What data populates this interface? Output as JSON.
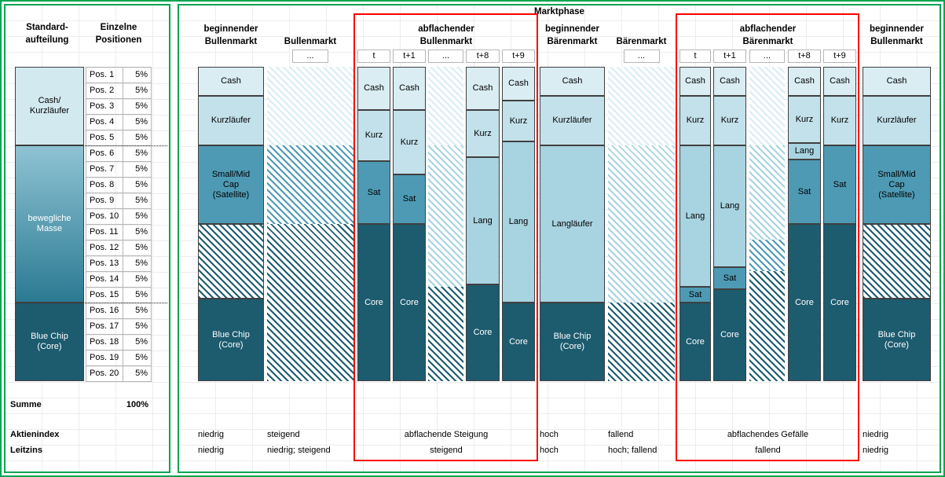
{
  "colors": {
    "panel_border_green": "#00A550",
    "highlight_red": "#FE0000",
    "grid_line": "#EDEDED",
    "cash": "#D9EDF3",
    "kurz": "#C3E1EA",
    "lang": "#A8D3E0",
    "sat": "#4E9AB4",
    "core": "#1D5B6F",
    "cash_kurz_block": "#D3E9F0",
    "movable_gradient_top": "#8FC3D4",
    "movable_gradient_bottom": "#2B7A92",
    "segment_border": "#404040"
  },
  "left_panel": {
    "col1_header": "Standard-\naufteilung",
    "col2_header": "Einzelne\nPositionen",
    "standard_bar": [
      {
        "label": "Cash/\nKurzläufer",
        "pct": 25,
        "fill": "cash_kurz_block",
        "text": "black"
      },
      {
        "label": "bewegliche\nMasse",
        "pct": 50,
        "fill": "movable_gradient",
        "text": "white"
      },
      {
        "label": "Blue Chip\n(Core)",
        "pct": 25,
        "fill": "core",
        "text": "white"
      }
    ],
    "positions": [
      {
        "label": "Pos. 1",
        "value": "5%"
      },
      {
        "label": "Pos. 2",
        "value": "5%"
      },
      {
        "label": "Pos. 3",
        "value": "5%"
      },
      {
        "label": "Pos. 4",
        "value": "5%"
      },
      {
        "label": "Pos. 5",
        "value": "5%"
      },
      {
        "label": "Pos. 6",
        "value": "5%"
      },
      {
        "label": "Pos. 7",
        "value": "5%"
      },
      {
        "label": "Pos. 8",
        "value": "5%"
      },
      {
        "label": "Pos. 9",
        "value": "5%"
      },
      {
        "label": "Pos. 10",
        "value": "5%"
      },
      {
        "label": "Pos. 11",
        "value": "5%"
      },
      {
        "label": "Pos. 12",
        "value": "5%"
      },
      {
        "label": "Pos. 13",
        "value": "5%"
      },
      {
        "label": "Pos. 14",
        "value": "5%"
      },
      {
        "label": "Pos. 15",
        "value": "5%"
      },
      {
        "label": "Pos. 16",
        "value": "5%"
      },
      {
        "label": "Pos. 17",
        "value": "5%"
      },
      {
        "label": "Pos. 18",
        "value": "5%"
      },
      {
        "label": "Pos. 19",
        "value": "5%"
      },
      {
        "label": "Pos. 20",
        "value": "5%"
      }
    ],
    "summe_label": "Summe",
    "summe_value": "100%",
    "aktienindex_label": "Aktienindex",
    "leitzins_label": "Leitzins"
  },
  "chart_data": {
    "type": "bar",
    "stacked": true,
    "title": "Marktphase",
    "value_unit": "percent",
    "ylim": [
      0,
      100
    ],
    "phases": [
      {
        "name": "beginnender\nBullenmarkt",
        "highlight": false,
        "aktienindex": "niedrig",
        "leitzins": "niedrig",
        "columns": [
          {
            "sub": "",
            "transition": false,
            "segments": [
              {
                "label": "Cash",
                "color": "cash",
                "pct": 9.25
              },
              {
                "label": "Kurzläufer",
                "color": "kurz",
                "pct": 15.75
              },
              {
                "label": "Small/Mid\nCap\n(Satellite)",
                "color": "sat",
                "pct": 25
              },
              {
                "label": "",
                "color": "core",
                "pct": 23.75,
                "hatch": true
              },
              {
                "label": "Blue Chip\n(Core)",
                "color": "core",
                "pct": 26.25,
                "text": "white"
              }
            ]
          }
        ]
      },
      {
        "name": "Bullenmarkt",
        "highlight": false,
        "aktienindex": "steigend",
        "leitzins": "niedrig; steigend",
        "columns": [
          {
            "sub": "...",
            "transition": true,
            "segments": [
              {
                "label": "",
                "color": "cash",
                "pct": 25,
                "hatch": true
              },
              {
                "label": "",
                "color": "sat",
                "pct": 25,
                "hatch": true
              },
              {
                "label": "",
                "color": "core",
                "pct": 50,
                "hatch": true
              }
            ]
          }
        ]
      },
      {
        "name": "abflachender\nBullenmarkt",
        "highlight": true,
        "aktienindex": "abflachende Steigung",
        "leitzins": "steigend",
        "columns": [
          {
            "sub": "t",
            "transition": false,
            "segments": [
              {
                "label": "Cash",
                "color": "cash",
                "pct": 13.75
              },
              {
                "label": "Kurz",
                "color": "kurz",
                "pct": 16.25
              },
              {
                "label": "Sat",
                "color": "sat",
                "pct": 20
              },
              {
                "label": "Core",
                "color": "core",
                "pct": 50,
                "text": "white"
              }
            ]
          },
          {
            "sub": "t+1",
            "transition": false,
            "segments": [
              {
                "label": "Cash",
                "color": "cash",
                "pct": 13.75
              },
              {
                "label": "Kurz",
                "color": "kurz",
                "pct": 20.5
              },
              {
                "label": "Sat",
                "color": "sat",
                "pct": 15.75
              },
              {
                "label": "Core",
                "color": "core",
                "pct": 50,
                "text": "white"
              }
            ]
          },
          {
            "sub": "...",
            "transition": true,
            "segments": [
              {
                "label": "",
                "color": "cash",
                "pct": 25,
                "hatch": true
              },
              {
                "label": "",
                "color": "lang",
                "pct": 45,
                "hatch": true
              },
              {
                "label": "",
                "color": "core",
                "pct": 30,
                "hatch": true
              }
            ]
          },
          {
            "sub": "t+8",
            "transition": false,
            "segments": [
              {
                "label": "Cash",
                "color": "cash",
                "pct": 13.75
              },
              {
                "label": "Kurz",
                "color": "kurz",
                "pct": 15
              },
              {
                "label": "Lang",
                "color": "lang",
                "pct": 40.5
              },
              {
                "label": "Core",
                "color": "core",
                "pct": 30.75,
                "text": "white"
              }
            ]
          },
          {
            "sub": "t+9",
            "transition": false,
            "segments": [
              {
                "label": "Cash",
                "color": "cash",
                "pct": 10.75
              },
              {
                "label": "Kurz",
                "color": "kurz",
                "pct": 13
              },
              {
                "label": "Lang",
                "color": "lang",
                "pct": 51.25
              },
              {
                "label": "Core",
                "color": "core",
                "pct": 25,
                "text": "white"
              }
            ]
          }
        ]
      },
      {
        "name": "beginnender\nBärenmarkt",
        "highlight": false,
        "aktienindex": "hoch",
        "leitzins": "hoch",
        "columns": [
          {
            "sub": "",
            "transition": false,
            "segments": [
              {
                "label": "Cash",
                "color": "cash",
                "pct": 9.25
              },
              {
                "label": "Kurzläufer",
                "color": "kurz",
                "pct": 15.75
              },
              {
                "label": "Langläufer",
                "color": "lang",
                "pct": 50
              },
              {
                "label": "Blue Chip\n(Core)",
                "color": "core",
                "pct": 25,
                "text": "white"
              }
            ]
          }
        ]
      },
      {
        "name": "Bärenmarkt",
        "highlight": false,
        "aktienindex": "fallend",
        "leitzins": "hoch; fallend",
        "columns": [
          {
            "sub": "...",
            "transition": true,
            "segments": [
              {
                "label": "",
                "color": "cash",
                "pct": 25,
                "hatch": true
              },
              {
                "label": "",
                "color": "lang",
                "pct": 50,
                "hatch": true
              },
              {
                "label": "",
                "color": "core",
                "pct": 25,
                "hatch": true
              }
            ]
          }
        ]
      },
      {
        "name": "abflachender\nBärenmarkt",
        "highlight": true,
        "aktienindex": "abflachendes Gefälle",
        "leitzins": "fallend",
        "columns": [
          {
            "sub": "t",
            "transition": false,
            "segments": [
              {
                "label": "Cash",
                "color": "cash",
                "pct": 9.25
              },
              {
                "label": "Kurz",
                "color": "kurz",
                "pct": 15.75
              },
              {
                "label": "Lang",
                "color": "lang",
                "pct": 45
              },
              {
                "label": "Sat",
                "color": "sat",
                "pct": 5
              },
              {
                "label": "Core",
                "color": "core",
                "pct": 25,
                "text": "white"
              }
            ]
          },
          {
            "sub": "t+1",
            "transition": false,
            "segments": [
              {
                "label": "Cash",
                "color": "cash",
                "pct": 9.25
              },
              {
                "label": "Kurz",
                "color": "kurz",
                "pct": 15.75
              },
              {
                "label": "Lang",
                "color": "lang",
                "pct": 38.75
              },
              {
                "label": "Sat",
                "color": "sat",
                "pct": 7
              },
              {
                "label": "Core",
                "color": "core",
                "pct": 29.25,
                "text": "white"
              }
            ]
          },
          {
            "sub": "...",
            "transition": true,
            "segments": [
              {
                "label": "",
                "color": "cash",
                "pct": 25,
                "hatch": true
              },
              {
                "label": "",
                "color": "lang",
                "pct": 30,
                "hatch": true
              },
              {
                "label": "",
                "color": "sat",
                "pct": 10,
                "hatch": true
              },
              {
                "label": "",
                "color": "core",
                "pct": 35,
                "hatch": true
              }
            ]
          },
          {
            "sub": "t+8",
            "transition": false,
            "segments": [
              {
                "label": "Cash",
                "color": "cash",
                "pct": 9.25
              },
              {
                "label": "Kurz",
                "color": "kurz",
                "pct": 15
              },
              {
                "label": "Lang",
                "color": "lang",
                "pct": 5.25
              },
              {
                "label": "Sat",
                "color": "sat",
                "pct": 20.5
              },
              {
                "label": "Core",
                "color": "core",
                "pct": 50,
                "text": "white"
              }
            ]
          },
          {
            "sub": "t+9",
            "transition": false,
            "segments": [
              {
                "label": "Cash",
                "color": "cash",
                "pct": 9.25
              },
              {
                "label": "Kurz",
                "color": "kurz",
                "pct": 15.75
              },
              {
                "label": "Sat",
                "color": "sat",
                "pct": 25
              },
              {
                "label": "Core",
                "color": "core",
                "pct": 50,
                "text": "white"
              }
            ]
          }
        ]
      },
      {
        "name": "beginnender\nBullenmarkt",
        "highlight": false,
        "aktienindex": "niedrig",
        "leitzins": "niedrig",
        "columns": [
          {
            "sub": "",
            "transition": false,
            "segments": [
              {
                "label": "Cash",
                "color": "cash",
                "pct": 9.25
              },
              {
                "label": "Kurzläufer",
                "color": "kurz",
                "pct": 15.75
              },
              {
                "label": "Small/Mid\nCap\n(Satellite)",
                "color": "sat",
                "pct": 25
              },
              {
                "label": "",
                "color": "core",
                "pct": 23.75,
                "hatch": true
              },
              {
                "label": "Blue Chip\n(Core)",
                "color": "core",
                "pct": 26.25,
                "text": "white"
              }
            ]
          }
        ]
      }
    ]
  }
}
